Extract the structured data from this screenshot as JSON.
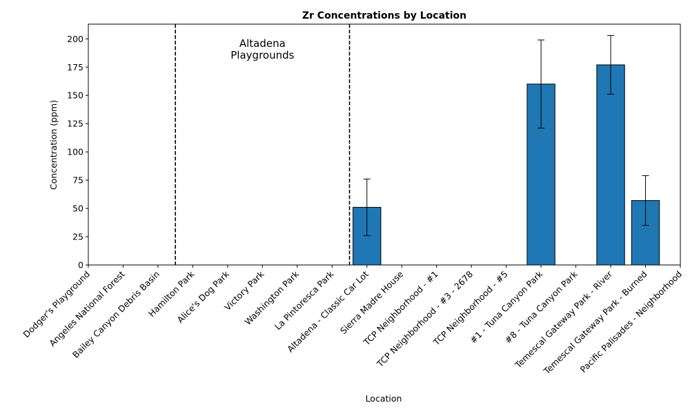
{
  "chart_data": {
    "type": "bar",
    "title": "Zr Concentrations by Location",
    "xlabel": "Location",
    "ylabel": "Concentration (ppm)",
    "ylim": [
      0,
      213
    ],
    "yticks": [
      0,
      25,
      50,
      75,
      100,
      125,
      150,
      175,
      200
    ],
    "grid": false,
    "bar_color": "#1f77b4",
    "edge_color": "#000000",
    "categories": [
      "Dodger's Playground",
      "Angeles National Forest",
      "Bailey Canyon Debris Basin",
      "Hamilton Park",
      "Alice's Dog Park",
      "Victory Park",
      "Washington Park",
      "La Pintoresca Park",
      "Altadena - Classic Car Lot",
      "Sierra Madre House",
      "TCP Neighborhood - #1",
      "TCP Neighborhood - #3 - 2678",
      "TCP Neighborhood - #5",
      "#1 - Tuna Canyon Park",
      "#8 - Tuna Canyon Park",
      "Temescal Gateway Park - River",
      "Temescal Gateway Park - Burned",
      "Pacific Palisades - Neighborhood"
    ],
    "values": [
      null,
      null,
      null,
      null,
      null,
      null,
      null,
      null,
      51,
      null,
      null,
      null,
      null,
      160,
      null,
      177,
      57,
      null
    ],
    "errors": [
      null,
      null,
      null,
      null,
      null,
      null,
      null,
      null,
      25,
      null,
      null,
      null,
      null,
      39,
      null,
      26,
      22,
      null
    ],
    "region_dividers": [
      2.5,
      7.5
    ],
    "annotations": [
      {
        "text_lines": [
          "Altadena",
          "Playgrounds"
        ],
        "x": 5,
        "y": 188
      }
    ]
  }
}
